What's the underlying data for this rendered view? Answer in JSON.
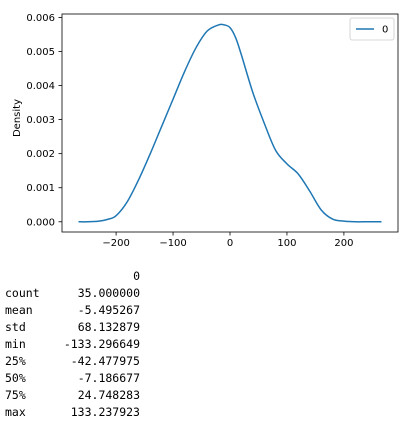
{
  "chart_data": {
    "type": "line",
    "kind": "kde",
    "title": "",
    "xlabel": "",
    "ylabel": "Density",
    "xlim": [
      -295,
      295
    ],
    "ylim": [
      -0.0003,
      0.0061
    ],
    "xticks": [
      -200,
      -100,
      0,
      100,
      200
    ],
    "xtick_labels": [
      "−200",
      "−100",
      "0",
      "100",
      "200"
    ],
    "yticks": [
      0.0,
      0.001,
      0.002,
      0.003,
      0.004,
      0.005,
      0.006
    ],
    "ytick_labels": [
      "0.000",
      "0.001",
      "0.002",
      "0.003",
      "0.004",
      "0.005",
      "0.006"
    ],
    "grid": false,
    "legend": {
      "placement": "top-right",
      "entries": [
        "0"
      ]
    },
    "series": [
      {
        "name": "0",
        "color": "#1f77b4",
        "x": [
          -266,
          -250,
          -230,
          -215,
          -200,
          -180,
          -160,
          -140,
          -120,
          -100,
          -80,
          -60,
          -40,
          -20,
          -10,
          0,
          10,
          20,
          40,
          60,
          80,
          100,
          120,
          140,
          160,
          180,
          200,
          220,
          240,
          266
        ],
        "y": [
          0.0,
          0.0,
          2e-05,
          7e-05,
          0.00018,
          0.0006,
          0.00125,
          0.002,
          0.0028,
          0.0036,
          0.0044,
          0.0051,
          0.0056,
          0.00578,
          0.00578,
          0.0057,
          0.0054,
          0.0049,
          0.0038,
          0.0029,
          0.0021,
          0.0017,
          0.0014,
          0.0009,
          0.00035,
          8e-05,
          2e-05,
          0.0,
          0.0,
          0.0
        ]
      }
    ]
  },
  "stats_table": {
    "column_header": "0",
    "rows": [
      {
        "label": "count",
        "value": "35.000000"
      },
      {
        "label": "mean",
        "value": "-5.495267"
      },
      {
        "label": "std",
        "value": "68.132879"
      },
      {
        "label": "min",
        "value": "-133.296649"
      },
      {
        "label": "25%",
        "value": "-42.477975"
      },
      {
        "label": "50%",
        "value": "-7.186677"
      },
      {
        "label": "75%",
        "value": "24.748283"
      },
      {
        "label": "max",
        "value": "133.237923"
      }
    ]
  }
}
